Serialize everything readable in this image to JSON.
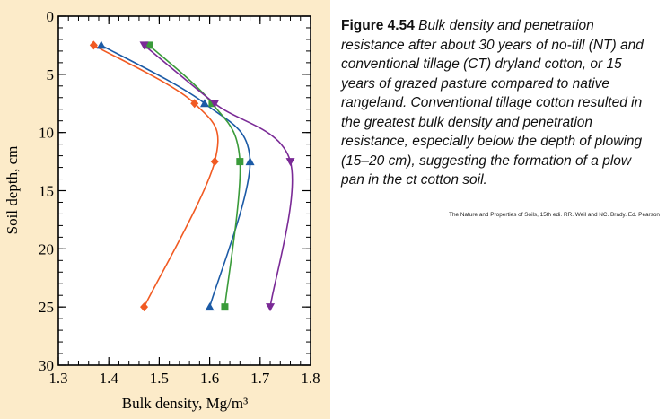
{
  "caption": {
    "label": "Figure 4.54",
    "text": "Bulk density and penetration resistance after about 30 years of no-till (NT) and conventional tillage (CT) dryland cotton, or 15 years of grazed pasture compared to native rangeland. Conventional tillage cotton resulted in the greatest bulk density and penetration resistance, especially below the depth of plowing (15–20 cm), suggesting the formation of a plow pan in the ct cotton soil.",
    "source": "The Nature and Properties of Soils, 15th edi. RR. Weil and NC. Brady.  Ed. Pearson"
  },
  "chart_data": {
    "type": "line",
    "title": "",
    "xlabel": "Bulk density, Mg/m³",
    "ylabel": "Soil depth, cm",
    "xlim": [
      1.3,
      1.8
    ],
    "ylim": [
      0,
      30
    ],
    "y_inverted": true,
    "x_ticks": [
      1.3,
      1.4,
      1.5,
      1.6,
      1.7,
      1.8
    ],
    "x_tick_labels": [
      "1.3",
      "1.4",
      "1.5",
      "1.6",
      "1.7",
      "1.8"
    ],
    "y_ticks": [
      0,
      5,
      10,
      15,
      20,
      25,
      30
    ],
    "y_tick_labels": [
      "0",
      "5",
      "10",
      "15",
      "20",
      "25",
      "30"
    ],
    "grid": false,
    "series": [
      {
        "marker": "diamond",
        "color": "#f15a22",
        "points": [
          [
            1.37,
            2.5
          ],
          [
            1.57,
            7.5
          ],
          [
            1.61,
            12.5
          ],
          [
            1.47,
            25
          ]
        ]
      },
      {
        "marker": "triangle-up",
        "color": "#1b5aa6",
        "points": [
          [
            1.385,
            2.5
          ],
          [
            1.59,
            7.5
          ],
          [
            1.68,
            12.5
          ],
          [
            1.6,
            25
          ]
        ]
      },
      {
        "marker": "square",
        "color": "#3a9b3a",
        "points": [
          [
            1.48,
            2.5
          ],
          [
            1.605,
            7.5
          ],
          [
            1.66,
            12.5
          ],
          [
            1.63,
            25
          ]
        ]
      },
      {
        "marker": "triangle-down",
        "color": "#7a2a96",
        "points": [
          [
            1.47,
            2.5
          ],
          [
            1.61,
            7.5
          ],
          [
            1.76,
            12.5
          ],
          [
            1.72,
            25
          ]
        ]
      }
    ]
  }
}
